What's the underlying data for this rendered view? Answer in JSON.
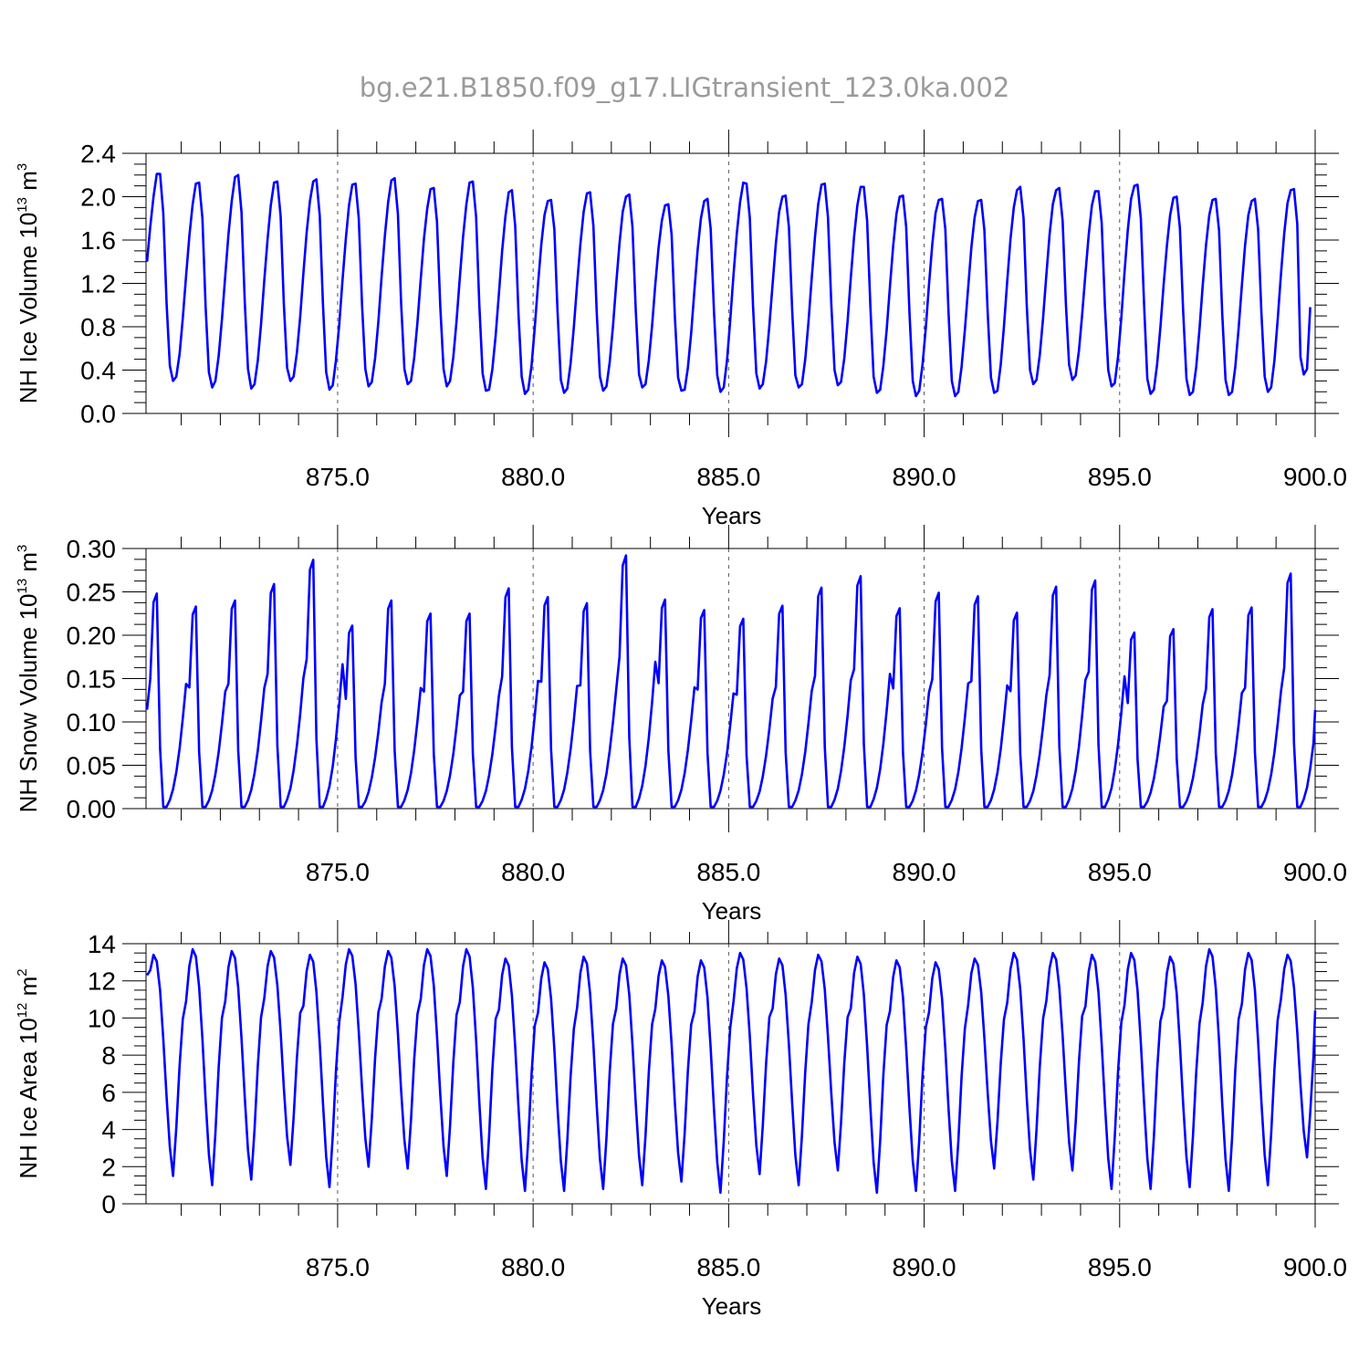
{
  "title": "bg.e21.B1850.f09_g17.LIGtransient_123.0ka.002",
  "chart_data": [
    {
      "type": "line",
      "name": "nh-ice-volume",
      "ylabel": "NH Ice Volume",
      "ylabel_unit_base": "10",
      "ylabel_unit_exp": "13",
      "ylabel_unit_tail": " m",
      "ylabel_unit_tail_exp": "3",
      "xlabel": "Years",
      "xlim": [
        870.1,
        900.0
      ],
      "ylim": [
        0.0,
        2.4
      ],
      "xticks": [
        875.0,
        880.0,
        885.0,
        890.0,
        895.0,
        900.0
      ],
      "xtick_labels": [
        "875.0",
        "880.0",
        "885.0",
        "890.0",
        "895.0",
        "900.0"
      ],
      "yticks": [
        0.0,
        0.4,
        0.8,
        1.2,
        1.6,
        2.0,
        2.4
      ],
      "ytick_labels": [
        "0.0",
        "0.4",
        "0.8",
        "1.2",
        "1.6",
        "2.0",
        "2.4"
      ],
      "vgrid": "dashed at major x ticks",
      "color": "#0000ff",
      "x_start": 870.125,
      "x_step": 0.0833333,
      "values": [
        1.4,
        1.72,
        2.0,
        2.21,
        2.21,
        1.85,
        1.02,
        0.44,
        0.3,
        0.34,
        0.55,
        0.88,
        1.27,
        1.64,
        1.93,
        2.12,
        2.13,
        1.8,
        0.98,
        0.38,
        0.24,
        0.3,
        0.53,
        0.87,
        1.27,
        1.65,
        1.96,
        2.18,
        2.2,
        1.86,
        1.03,
        0.41,
        0.23,
        0.27,
        0.49,
        0.82,
        1.23,
        1.61,
        1.92,
        2.13,
        2.14,
        1.82,
        1.01,
        0.42,
        0.3,
        0.34,
        0.56,
        0.89,
        1.29,
        1.67,
        1.96,
        2.14,
        2.16,
        1.83,
        1.0,
        0.38,
        0.22,
        0.26,
        0.49,
        0.82,
        1.23,
        1.61,
        1.92,
        2.11,
        2.12,
        1.8,
        1.0,
        0.41,
        0.25,
        0.29,
        0.51,
        0.85,
        1.26,
        1.64,
        1.95,
        2.15,
        2.17,
        1.84,
        1.02,
        0.41,
        0.27,
        0.3,
        0.51,
        0.84,
        1.24,
        1.61,
        1.89,
        2.07,
        2.08,
        1.77,
        0.99,
        0.41,
        0.25,
        0.3,
        0.52,
        0.85,
        1.25,
        1.63,
        1.93,
        2.13,
        2.14,
        1.81,
        1.0,
        0.37,
        0.21,
        0.22,
        0.41,
        0.72,
        1.11,
        1.5,
        1.82,
        2.04,
        2.06,
        1.73,
        0.92,
        0.34,
        0.18,
        0.22,
        0.44,
        0.79,
        1.19,
        1.56,
        1.83,
        1.96,
        1.97,
        1.7,
        0.94,
        0.31,
        0.19,
        0.23,
        0.46,
        0.8,
        1.19,
        1.56,
        1.86,
        2.03,
        2.04,
        1.73,
        0.94,
        0.34,
        0.21,
        0.25,
        0.47,
        0.8,
        1.2,
        1.57,
        1.86,
        2.0,
        2.02,
        1.72,
        0.95,
        0.36,
        0.24,
        0.27,
        0.49,
        0.81,
        1.19,
        1.53,
        1.78,
        1.92,
        1.93,
        1.65,
        0.9,
        0.33,
        0.21,
        0.22,
        0.42,
        0.74,
        1.14,
        1.51,
        1.8,
        1.96,
        1.98,
        1.7,
        0.94,
        0.35,
        0.2,
        0.24,
        0.49,
        0.86,
        1.28,
        1.66,
        1.95,
        2.13,
        2.12,
        1.8,
        0.99,
        0.37,
        0.23,
        0.27,
        0.48,
        0.81,
        1.2,
        1.57,
        1.86,
        2.0,
        2.01,
        1.72,
        0.95,
        0.35,
        0.24,
        0.27,
        0.5,
        0.84,
        1.25,
        1.63,
        1.93,
        2.11,
        2.12,
        1.81,
        1.02,
        0.4,
        0.26,
        0.29,
        0.51,
        0.85,
        1.25,
        1.63,
        1.92,
        2.09,
        2.09,
        1.78,
        0.98,
        0.34,
        0.19,
        0.22,
        0.44,
        0.77,
        1.17,
        1.55,
        1.84,
        2.0,
        2.01,
        1.72,
        0.93,
        0.3,
        0.16,
        0.21,
        0.45,
        0.79,
        1.19,
        1.56,
        1.85,
        1.97,
        1.98,
        1.7,
        0.93,
        0.3,
        0.16,
        0.2,
        0.43,
        0.77,
        1.16,
        1.53,
        1.81,
        1.96,
        1.97,
        1.69,
        0.93,
        0.33,
        0.19,
        0.21,
        0.45,
        0.8,
        1.22,
        1.61,
        1.9,
        2.06,
        2.09,
        1.8,
        1.0,
        0.4,
        0.27,
        0.31,
        0.54,
        0.88,
        1.28,
        1.65,
        1.93,
        2.06,
        2.08,
        1.78,
        1.01,
        0.45,
        0.31,
        0.35,
        0.58,
        0.91,
        1.29,
        1.65,
        1.92,
        2.05,
        2.05,
        1.76,
        0.98,
        0.4,
        0.25,
        0.28,
        0.52,
        0.88,
        1.3,
        1.69,
        1.98,
        2.1,
        2.11,
        1.8,
        1.0,
        0.32,
        0.18,
        0.22,
        0.45,
        0.79,
        1.19,
        1.55,
        1.83,
        1.99,
        2.0,
        1.71,
        0.94,
        0.32,
        0.17,
        0.2,
        0.43,
        0.78,
        1.18,
        1.55,
        1.83,
        1.97,
        1.98,
        1.69,
        0.92,
        0.31,
        0.17,
        0.2,
        0.43,
        0.78,
        1.18,
        1.55,
        1.83,
        1.96,
        1.98,
        1.7,
        0.93,
        0.34,
        0.2,
        0.24,
        0.49,
        0.86,
        1.28,
        1.66,
        1.94,
        2.06,
        2.07,
        1.75,
        0.52,
        0.36,
        0.41,
        0.98
      ]
    },
    {
      "type": "line",
      "name": "nh-snow-volume",
      "ylabel": "NH Snow Volume",
      "ylabel_unit_base": "10",
      "ylabel_unit_exp": "13",
      "ylabel_unit_tail": " m",
      "ylabel_unit_tail_exp": "3",
      "xlabel": "Years",
      "xlim": [
        870.1,
        900.0
      ],
      "ylim": [
        0.0,
        0.3
      ],
      "xticks": [
        875.0,
        880.0,
        885.0,
        890.0,
        895.0,
        900.0
      ],
      "xtick_labels": [
        "875.0",
        "880.0",
        "885.0",
        "890.0",
        "895.0",
        "900.0"
      ],
      "yticks": [
        0.0,
        0.05,
        0.1,
        0.15,
        0.2,
        0.25,
        0.3
      ],
      "ytick_labels": [
        "0.00",
        "0.05",
        "0.10",
        "0.15",
        "0.20",
        "0.25",
        "0.30"
      ],
      "vgrid": "dashed at major x ticks",
      "color": "#0000ff",
      "x_start": 870.125,
      "x_step": 0.0833333,
      "peaks": [
        0.248,
        0.233,
        0.24,
        0.259,
        0.287,
        0.211,
        0.24,
        0.225,
        0.225,
        0.254,
        0.244,
        0.237,
        0.292,
        0.241,
        0.229,
        0.219,
        0.234,
        0.255,
        0.268,
        0.231,
        0.249,
        0.245,
        0.226,
        0.256,
        0.263,
        0.203,
        0.207,
        0.23,
        0.232,
        0.271
      ],
      "trough": 0.002
    },
    {
      "type": "line",
      "name": "nh-ice-area",
      "ylabel": "NH Ice Area",
      "ylabel_unit_base": "10",
      "ylabel_unit_exp": "12",
      "ylabel_unit_tail": " m",
      "ylabel_unit_tail_exp": "2",
      "xlabel": "Years",
      "xlim": [
        870.1,
        900.0
      ],
      "ylim": [
        0,
        14
      ],
      "xticks": [
        875.0,
        880.0,
        885.0,
        890.0,
        895.0,
        900.0
      ],
      "xtick_labels": [
        "875.0",
        "880.0",
        "885.0",
        "890.0",
        "895.0",
        "900.0"
      ],
      "yticks": [
        0,
        2,
        4,
        6,
        8,
        10,
        12,
        14
      ],
      "ytick_labels": [
        "0",
        "2",
        "4",
        "6",
        "8",
        "10",
        "12",
        "14"
      ],
      "vgrid": "dashed at major x ticks",
      "color": "#0000ff",
      "x_start": 870.125,
      "x_step": 0.0833333,
      "maxima": [
        13.4,
        13.7,
        13.6,
        13.6,
        13.4,
        13.7,
        13.6,
        13.7,
        13.7,
        13.2,
        13.0,
        13.3,
        13.2,
        13.1,
        13.1,
        13.5,
        13.2,
        13.4,
        13.3,
        13.1,
        13.0,
        13.2,
        13.5,
        13.5,
        13.4,
        13.5,
        13.3,
        13.7,
        13.5,
        13.4
      ],
      "minima": [
        1.5,
        1.0,
        1.3,
        2.1,
        0.9,
        2.0,
        1.9,
        1.5,
        0.8,
        0.7,
        0.7,
        0.8,
        1.0,
        1.2,
        0.6,
        1.6,
        1.0,
        1.8,
        0.6,
        0.7,
        0.7,
        1.9,
        1.3,
        1.8,
        0.8,
        0.8,
        0.9,
        0.7,
        1.0,
        2.5
      ],
      "start": 12.3,
      "end": 10.4
    }
  ]
}
